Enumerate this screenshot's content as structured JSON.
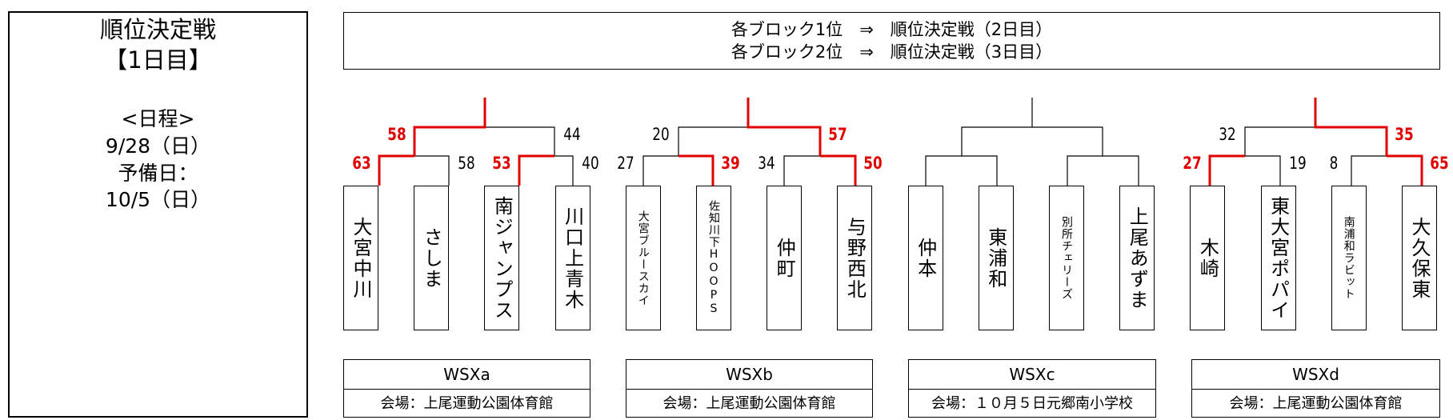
{
  "info": {
    "title": "順位決定戦",
    "day": "【1日目】",
    "schedule_label": "<日程>",
    "date": "9/28（日）",
    "reserve_label": "予備日：",
    "reserve_date": "10/5（日）"
  },
  "notes": [
    "各ブロック1位　⇒　順位決定戦（2日目）",
    "各ブロック2位　⇒　順位決定戦（3日目）"
  ],
  "colors": {
    "winner": "#e00000",
    "line": "#000000"
  },
  "blocks": [
    {
      "name": "WSXa",
      "venue": "会場：上尾運動公園体育館",
      "teams": [
        "大宮中川",
        "さしま",
        "南ジャンプス",
        "川口上青木"
      ],
      "round1": [
        {
          "scores": [
            "63",
            "58"
          ],
          "winner": 0
        },
        {
          "scores": [
            "53",
            "40"
          ],
          "winner": 0
        }
      ],
      "round2": {
        "scores": [
          "58",
          "44"
        ],
        "winner": 0
      }
    },
    {
      "name": "WSXb",
      "venue": "会場：上尾運動公園体育館",
      "teams": [
        "大宮ブルースカイ",
        "佐知川下HOOPS",
        "仲町",
        "与野西北"
      ],
      "round1": [
        {
          "scores": [
            "27",
            "39"
          ],
          "winner": 1
        },
        {
          "scores": [
            "34",
            "50"
          ],
          "winner": 1
        }
      ],
      "round2": {
        "scores": [
          "20",
          "57"
        ],
        "winner": 1
      }
    },
    {
      "name": "WSXc",
      "venue": "会場：１０月５日元郷南小学校",
      "teams": [
        "仲本",
        "東浦和",
        "別所チェリーズ",
        "上尾あずま"
      ],
      "round1": [
        {
          "scores": [
            "",
            ""
          ],
          "winner": null
        },
        {
          "scores": [
            "",
            ""
          ],
          "winner": null
        }
      ],
      "round2": {
        "scores": [
          "",
          ""
        ],
        "winner": null
      }
    },
    {
      "name": "WSXd",
      "venue": "会場：上尾運動公園体育館",
      "teams": [
        "木崎",
        "東大宮ポパイ",
        "南浦和ラビット",
        "大久保東"
      ],
      "round1": [
        {
          "scores": [
            "27",
            "19"
          ],
          "winner": 0
        },
        {
          "scores": [
            "8",
            "65"
          ],
          "winner": 1
        }
      ],
      "round2": {
        "scores": [
          "32",
          "35"
        ],
        "winner": 1
      }
    }
  ]
}
